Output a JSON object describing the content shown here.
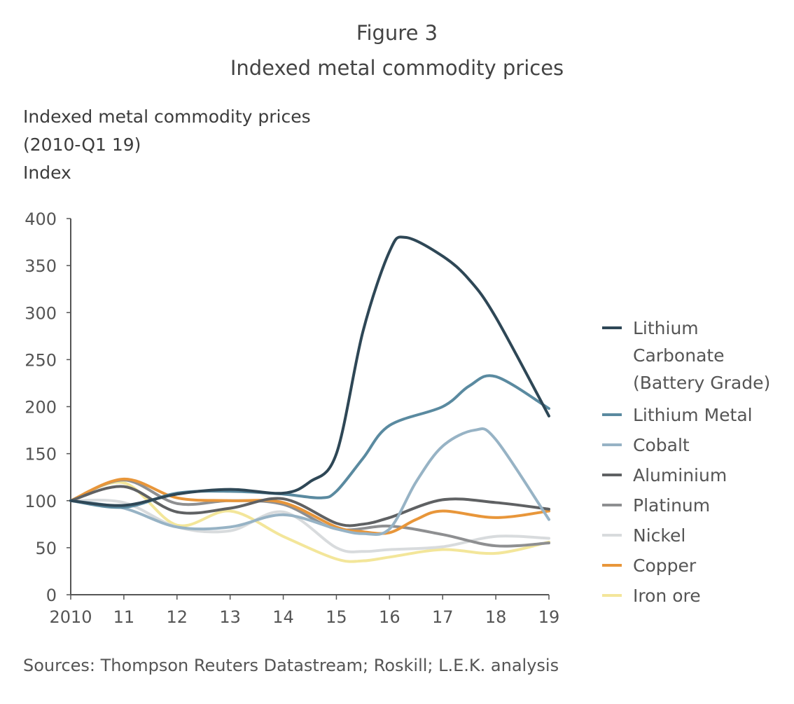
{
  "figure_label": "Figure 3",
  "figure_title": "Indexed metal commodity prices",
  "source": "Sources: Thompson Reuters Datastream; Roskill; L.E.K. analysis",
  "chart_data": {
    "type": "line",
    "title": "Indexed metal commodity prices",
    "subtitle": "(2010-Q1 19)",
    "ylabel": "Index",
    "xlabel": "",
    "xlim": [
      2010,
      2019
    ],
    "ylim": [
      0,
      400
    ],
    "x_ticks": [
      2010,
      2011,
      2012,
      2013,
      2014,
      2015,
      2016,
      2017,
      2018,
      2019
    ],
    "x_tick_labels": [
      "2010",
      "11",
      "12",
      "13",
      "14",
      "15",
      "16",
      "17",
      "18",
      "19"
    ],
    "y_ticks": [
      0,
      50,
      100,
      150,
      200,
      250,
      300,
      350,
      400
    ],
    "y_tick_labels": [
      "0",
      "50",
      "100",
      "150",
      "200",
      "250",
      "300",
      "350",
      "400"
    ],
    "grid": false,
    "legend_position": "right",
    "series": [
      {
        "name": "Lithium Carbonate (Battery Grade)",
        "legend_lines": [
          "Lithium",
          "Carbonate",
          "(Battery Grade)"
        ],
        "color": "#2e4756",
        "x": [
          2010,
          2011,
          2012,
          2013,
          2014,
          2014.5,
          2015,
          2015.5,
          2016,
          2016.3,
          2017,
          2017.5,
          2018,
          2019
        ],
        "y": [
          100,
          95,
          107,
          112,
          108,
          120,
          150,
          280,
          365,
          380,
          360,
          335,
          295,
          190
        ]
      },
      {
        "name": "Lithium Metal",
        "legend_lines": [
          "Lithium Metal"
        ],
        "color": "#5a8aa0",
        "x": [
          2010,
          2011,
          2012,
          2013,
          2014,
          2014.7,
          2015,
          2015.5,
          2016,
          2017,
          2017.5,
          2018,
          2019
        ],
        "y": [
          100,
          93,
          108,
          110,
          107,
          103,
          110,
          145,
          180,
          200,
          222,
          232,
          198
        ]
      },
      {
        "name": "Cobalt",
        "legend_lines": [
          "Cobalt"
        ],
        "color": "#97b3c5",
        "x": [
          2010,
          2011,
          2012,
          2013,
          2014,
          2015,
          2015.5,
          2016,
          2016.5,
          2017,
          2017.6,
          2018,
          2019
        ],
        "y": [
          100,
          92,
          72,
          72,
          85,
          70,
          65,
          70,
          120,
          158,
          175,
          165,
          80
        ]
      },
      {
        "name": "Aluminium",
        "legend_lines": [
          "Aluminium"
        ],
        "color": "#5f6163",
        "x": [
          2010,
          2011,
          2012,
          2013,
          2014,
          2015,
          2015.5,
          2016,
          2017,
          2018,
          2019
        ],
        "y": [
          100,
          115,
          88,
          92,
          102,
          76,
          75,
          82,
          101,
          98,
          91
        ]
      },
      {
        "name": "Platinum",
        "legend_lines": [
          "Platinum"
        ],
        "color": "#8e8f91",
        "x": [
          2010,
          2011,
          2012,
          2013,
          2014,
          2015,
          2016,
          2017,
          2018,
          2019
        ],
        "y": [
          100,
          122,
          97,
          100,
          96,
          70,
          73,
          64,
          52,
          55
        ]
      },
      {
        "name": "Nickel",
        "legend_lines": [
          "Nickel"
        ],
        "color": "#d8dbdd",
        "x": [
          2010,
          2011,
          2012,
          2013,
          2014,
          2015,
          2015.5,
          2016,
          2017,
          2018,
          2019
        ],
        "y": [
          100,
          98,
          72,
          68,
          88,
          50,
          46,
          48,
          51,
          62,
          60
        ]
      },
      {
        "name": "Copper",
        "legend_lines": [
          "Copper"
        ],
        "color": "#e8963a",
        "x": [
          2010,
          2011,
          2012,
          2013,
          2014,
          2015,
          2015.5,
          2016,
          2016.5,
          2017,
          2018,
          2019
        ],
        "y": [
          100,
          123,
          103,
          100,
          98,
          72,
          67,
          66,
          80,
          89,
          82,
          89
        ]
      },
      {
        "name": "Iron ore",
        "legend_lines": [
          "Iron ore"
        ],
        "color": "#f3e69a",
        "x": [
          2010,
          2011,
          2012,
          2013,
          2014,
          2015,
          2015.5,
          2016,
          2017,
          2018,
          2019
        ],
        "y": [
          100,
          119,
          74,
          89,
          62,
          38,
          36,
          40,
          48,
          44,
          56
        ]
      }
    ]
  }
}
